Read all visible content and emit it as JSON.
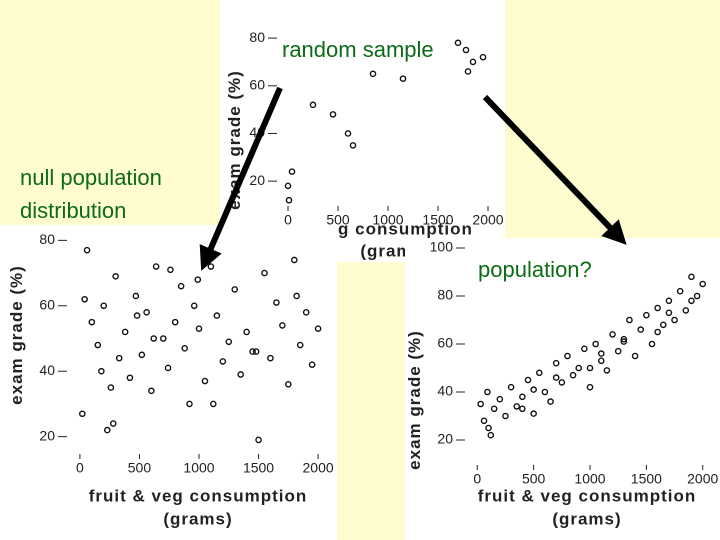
{
  "chart_data": [
    {
      "type": "scatter",
      "annotation": "random sample",
      "x_label": "veg consumption",
      "x_label_2": "(grams)",
      "y_label": "exam grade (%)",
      "x": [
        0,
        10,
        40,
        250,
        450,
        600,
        650,
        850,
        1150,
        1700,
        1780,
        1850,
        1950,
        1800
      ],
      "series": [
        {
          "name": null,
          "color": "#111111",
          "values": [
            18,
            12,
            24,
            52,
            48,
            40,
            35,
            65,
            63,
            78,
            75,
            70,
            72,
            66
          ]
        }
      ],
      "xlim": [
        -100,
        2100
      ],
      "ylim": [
        10,
        88
      ],
      "xticks": [
        0,
        500,
        1000,
        1500,
        2000
      ],
      "yticks": [
        20,
        40,
        60,
        80
      ]
    },
    {
      "type": "scatter",
      "annotation": "null population distribution",
      "x_label": "fruit & veg consumption",
      "x_label_2": "(grams)",
      "y_label": "exam grade (%)",
      "x": [
        20,
        60,
        100,
        150,
        200,
        230,
        260,
        300,
        330,
        380,
        420,
        470,
        520,
        560,
        600,
        640,
        700,
        740,
        800,
        850,
        880,
        920,
        960,
        1000,
        1050,
        1100,
        1150,
        1200,
        1250,
        1300,
        1350,
        1400,
        1450,
        1500,
        1550,
        1600,
        1650,
        1700,
        1750,
        1800,
        1850,
        1900,
        1950,
        2000,
        40,
        180,
        480,
        760,
        1120,
        1480,
        1820,
        280,
        620,
        990
      ],
      "series": [
        {
          "name": null,
          "color": "#111111",
          "values": [
            27,
            77,
            55,
            48,
            60,
            22,
            35,
            69,
            44,
            52,
            38,
            63,
            45,
            58,
            34,
            72,
            50,
            41,
            55,
            66,
            47,
            30,
            60,
            53,
            37,
            72,
            57,
            43,
            49,
            65,
            39,
            52,
            46,
            19,
            70,
            44,
            61,
            54,
            36,
            74,
            48,
            58,
            42,
            53,
            62,
            40,
            57,
            71,
            30,
            46,
            63,
            24,
            50,
            68
          ]
        }
      ],
      "xlim": [
        -100,
        2100
      ],
      "ylim": [
        15,
        85
      ],
      "xticks": [
        0,
        500,
        1000,
        1500,
        2000
      ],
      "yticks": [
        20,
        40,
        60,
        80
      ]
    },
    {
      "type": "scatter",
      "annotation": "population?",
      "x_label": "fruit & veg consumption",
      "x_label_2": "(grams)",
      "y_label": "exam grade (%)",
      "x": [
        30,
        60,
        90,
        120,
        150,
        200,
        250,
        300,
        350,
        400,
        450,
        500,
        550,
        600,
        650,
        700,
        750,
        800,
        850,
        900,
        950,
        1000,
        1050,
        1100,
        1150,
        1200,
        1250,
        1300,
        1350,
        1400,
        1450,
        1500,
        1550,
        1600,
        1650,
        1700,
        1750,
        1800,
        1850,
        1900,
        1950,
        2000,
        100,
        400,
        700,
        1000,
        1300,
        1600,
        1900,
        500,
        1100,
        1700
      ],
      "series": [
        {
          "name": null,
          "color": "#111111",
          "values": [
            35,
            28,
            40,
            22,
            33,
            37,
            30,
            42,
            34,
            38,
            45,
            31,
            48,
            40,
            36,
            52,
            44,
            55,
            47,
            50,
            58,
            42,
            60,
            53,
            49,
            64,
            57,
            62,
            70,
            55,
            66,
            72,
            60,
            75,
            68,
            78,
            70,
            82,
            74,
            88,
            80,
            85,
            25,
            33,
            46,
            50,
            61,
            65,
            78,
            41,
            56,
            73
          ]
        }
      ],
      "xlim": [
        -100,
        2100
      ],
      "ylim": [
        10,
        105
      ],
      "xticks": [
        0,
        500,
        1000,
        1500,
        2000
      ],
      "yticks": [
        20,
        40,
        60,
        80,
        100
      ]
    }
  ]
}
